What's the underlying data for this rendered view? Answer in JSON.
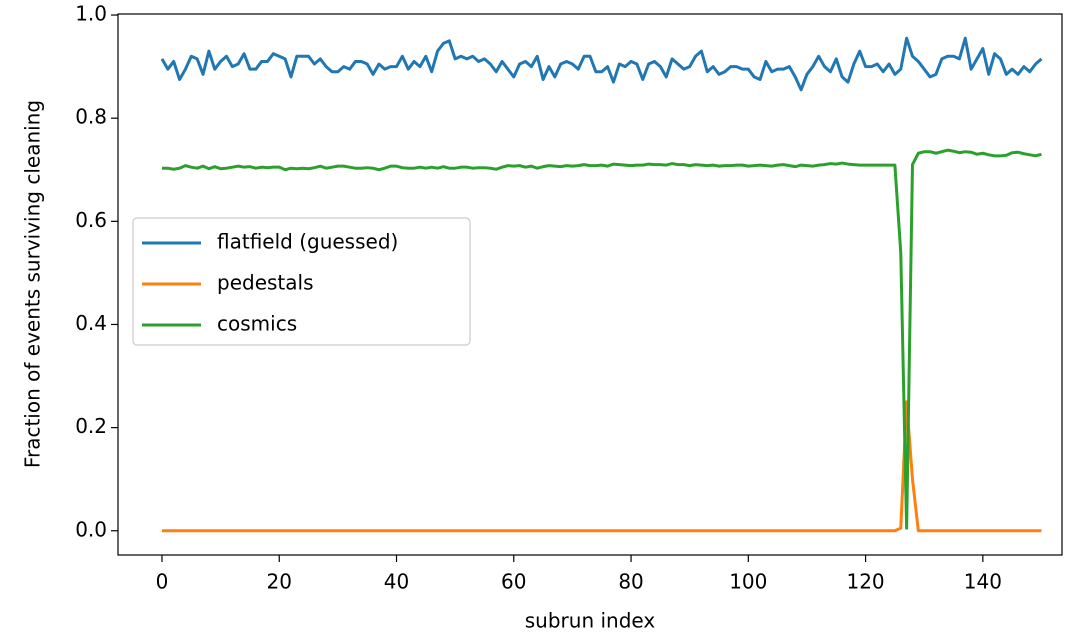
{
  "chart_data": {
    "type": "line",
    "xlabel": "subrun index",
    "ylabel": "Fraction of events surviving cleaning",
    "xlim": [
      -7.5,
      153.5
    ],
    "ylim": [
      -0.047,
      1.002
    ],
    "xticks": [
      0,
      20,
      40,
      60,
      80,
      100,
      120,
      140
    ],
    "yticks": [
      {
        "value": 0,
        "label": "0.0"
      },
      0.2,
      0.4,
      0.6,
      0.8,
      {
        "value": 1,
        "label": "1.0"
      }
    ],
    "legend": "center left",
    "x": [
      0,
      1,
      2,
      3,
      4,
      5,
      6,
      7,
      8,
      9,
      10,
      11,
      12,
      13,
      14,
      15,
      16,
      17,
      18,
      19,
      20,
      21,
      22,
      23,
      24,
      25,
      26,
      27,
      28,
      29,
      30,
      31,
      32,
      33,
      34,
      35,
      36,
      37,
      38,
      39,
      40,
      41,
      42,
      43,
      44,
      45,
      46,
      47,
      48,
      49,
      50,
      51,
      52,
      53,
      54,
      55,
      56,
      57,
      58,
      59,
      60,
      61,
      62,
      63,
      64,
      65,
      66,
      67,
      68,
      69,
      70,
      71,
      72,
      73,
      74,
      75,
      76,
      77,
      78,
      79,
      80,
      81,
      82,
      83,
      84,
      85,
      86,
      87,
      88,
      89,
      90,
      91,
      92,
      93,
      94,
      95,
      96,
      97,
      98,
      99,
      100,
      101,
      102,
      103,
      104,
      105,
      106,
      107,
      108,
      109,
      110,
      111,
      112,
      113,
      114,
      115,
      116,
      117,
      118,
      119,
      120,
      121,
      122,
      123,
      124,
      125,
      126,
      127,
      128,
      129,
      130,
      131,
      132,
      133,
      134,
      135,
      136,
      137,
      138,
      139,
      140,
      141,
      142,
      143,
      144,
      145,
      146,
      147,
      148,
      149,
      150
    ],
    "series": [
      {
        "name": "flatfield (guessed)",
        "color": "#1f77b4",
        "values": [
          0.915,
          0.895,
          0.91,
          0.875,
          0.895,
          0.92,
          0.915,
          0.885,
          0.93,
          0.895,
          0.91,
          0.92,
          0.9,
          0.905,
          0.925,
          0.895,
          0.895,
          0.91,
          0.91,
          0.925,
          0.92,
          0.915,
          0.88,
          0.92,
          0.92,
          0.92,
          0.905,
          0.915,
          0.9,
          0.89,
          0.89,
          0.9,
          0.895,
          0.91,
          0.91,
          0.905,
          0.885,
          0.905,
          0.895,
          0.9,
          0.9,
          0.92,
          0.895,
          0.91,
          0.9,
          0.92,
          0.89,
          0.93,
          0.945,
          0.95,
          0.915,
          0.92,
          0.915,
          0.92,
          0.91,
          0.915,
          0.905,
          0.89,
          0.91,
          0.895,
          0.88,
          0.905,
          0.91,
          0.9,
          0.92,
          0.875,
          0.9,
          0.88,
          0.905,
          0.91,
          0.905,
          0.895,
          0.92,
          0.92,
          0.89,
          0.89,
          0.9,
          0.87,
          0.905,
          0.9,
          0.91,
          0.905,
          0.875,
          0.905,
          0.91,
          0.9,
          0.88,
          0.915,
          0.905,
          0.895,
          0.9,
          0.92,
          0.93,
          0.89,
          0.9,
          0.885,
          0.89,
          0.9,
          0.9,
          0.895,
          0.895,
          0.88,
          0.875,
          0.91,
          0.89,
          0.895,
          0.895,
          0.9,
          0.88,
          0.855,
          0.885,
          0.9,
          0.92,
          0.9,
          0.89,
          0.915,
          0.88,
          0.87,
          0.905,
          0.93,
          0.9,
          0.9,
          0.905,
          0.89,
          0.905,
          0.885,
          0.895,
          0.955,
          0.92,
          0.91,
          0.895,
          0.88,
          0.885,
          0.915,
          0.92,
          0.92,
          0.915,
          0.955,
          0.895,
          0.915,
          0.935,
          0.885,
          0.925,
          0.915,
          0.885,
          0.895,
          0.885,
          0.9,
          0.89,
          0.905,
          0.915
        ]
      },
      {
        "name": "pedestals",
        "color": "#ff7f0e",
        "values": [
          0,
          0,
          0,
          0,
          0,
          0,
          0,
          0,
          0,
          0,
          0,
          0,
          0,
          0,
          0,
          0,
          0,
          0,
          0,
          0,
          0,
          0,
          0,
          0,
          0,
          0,
          0,
          0,
          0,
          0,
          0,
          0,
          0,
          0,
          0,
          0,
          0,
          0,
          0,
          0,
          0,
          0,
          0,
          0,
          0,
          0,
          0,
          0,
          0,
          0,
          0,
          0,
          0,
          0,
          0,
          0,
          0,
          0,
          0,
          0,
          0,
          0,
          0,
          0,
          0,
          0,
          0,
          0,
          0,
          0,
          0,
          0,
          0,
          0,
          0,
          0,
          0,
          0,
          0,
          0,
          0,
          0,
          0,
          0,
          0,
          0,
          0,
          0,
          0,
          0,
          0,
          0,
          0,
          0,
          0,
          0,
          0,
          0,
          0,
          0,
          0,
          0,
          0,
          0,
          0,
          0,
          0,
          0,
          0,
          0,
          0,
          0,
          0,
          0,
          0,
          0,
          0,
          0,
          0,
          0,
          0,
          0,
          0,
          0,
          0,
          0,
          0.005,
          0.25,
          0.1,
          0,
          0,
          0,
          0,
          0,
          0,
          0,
          0,
          0,
          0,
          0,
          0,
          0,
          0,
          0,
          0,
          0,
          0,
          0,
          0,
          0,
          0
        ]
      },
      {
        "name": "cosmics",
        "color": "#2ca02c",
        "values": [
          0.703,
          0.703,
          0.701,
          0.703,
          0.708,
          0.705,
          0.703,
          0.707,
          0.702,
          0.706,
          0.702,
          0.703,
          0.705,
          0.707,
          0.705,
          0.706,
          0.703,
          0.705,
          0.704,
          0.705,
          0.705,
          0.7,
          0.703,
          0.702,
          0.703,
          0.702,
          0.704,
          0.707,
          0.703,
          0.705,
          0.707,
          0.707,
          0.705,
          0.703,
          0.703,
          0.704,
          0.703,
          0.7,
          0.703,
          0.707,
          0.707,
          0.704,
          0.703,
          0.703,
          0.705,
          0.703,
          0.705,
          0.703,
          0.706,
          0.703,
          0.703,
          0.705,
          0.705,
          0.703,
          0.704,
          0.704,
          0.703,
          0.701,
          0.705,
          0.708,
          0.707,
          0.708,
          0.705,
          0.707,
          0.703,
          0.706,
          0.708,
          0.707,
          0.706,
          0.708,
          0.707,
          0.708,
          0.71,
          0.708,
          0.708,
          0.709,
          0.707,
          0.711,
          0.71,
          0.709,
          0.708,
          0.709,
          0.709,
          0.711,
          0.71,
          0.71,
          0.709,
          0.712,
          0.71,
          0.71,
          0.708,
          0.71,
          0.709,
          0.708,
          0.709,
          0.707,
          0.708,
          0.708,
          0.709,
          0.709,
          0.707,
          0.708,
          0.709,
          0.708,
          0.707,
          0.709,
          0.71,
          0.708,
          0.706,
          0.709,
          0.708,
          0.707,
          0.709,
          0.71,
          0.712,
          0.711,
          0.713,
          0.711,
          0.71,
          0.709,
          0.709,
          0.709,
          0.709,
          0.709,
          0.709,
          0.709,
          0.54,
          0.005,
          0.71,
          0.732,
          0.735,
          0.735,
          0.732,
          0.735,
          0.738,
          0.736,
          0.733,
          0.735,
          0.734,
          0.73,
          0.732,
          0.729,
          0.727,
          0.727,
          0.728,
          0.733,
          0.734,
          0.731,
          0.729,
          0.727,
          0.73
        ]
      }
    ]
  }
}
